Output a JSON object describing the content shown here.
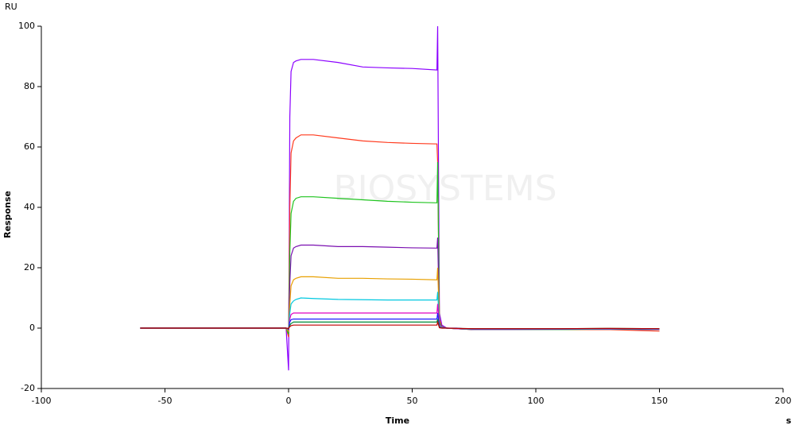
{
  "chart_data": {
    "type": "line",
    "y_unit": "RU",
    "x_unit": "s",
    "x_label": "Time",
    "y_label": "Response",
    "watermark": "BIOSYSTEMS",
    "xlim": [
      -100,
      200
    ],
    "xticks": [
      -100,
      -50,
      0,
      50,
      100,
      150,
      200
    ],
    "ylim": [
      -20,
      100
    ],
    "yticks": [
      -20,
      0,
      20,
      40,
      60,
      80,
      100
    ],
    "grid": false,
    "x": [
      -60,
      -30,
      -1,
      0,
      0.5,
      1,
      2,
      3,
      5,
      10,
      20,
      30,
      40,
      50,
      60,
      60.3,
      61,
      62,
      64,
      68,
      75,
      90,
      110,
      130,
      150
    ],
    "series": [
      {
        "color": "#8b00ff",
        "values": [
          0,
          0,
          0,
          -14,
          70,
          85,
          88,
          88.5,
          89,
          89,
          88,
          86.5,
          86.2,
          86,
          85.5,
          100,
          5,
          1,
          0,
          0,
          -0.5,
          -0.5,
          -0.5,
          -0.3,
          -0.5
        ]
      },
      {
        "color": "#ff3b1f",
        "values": [
          0,
          0,
          0,
          -3,
          40,
          58,
          62,
          63,
          64,
          64,
          63,
          62,
          61.5,
          61.2,
          61,
          55,
          3,
          0.5,
          0,
          -0.2,
          -0.5,
          -0.5,
          -0.5,
          -0.5,
          -1
        ]
      },
      {
        "color": "#1fc41f",
        "values": [
          0,
          0,
          0,
          -2,
          25,
          38,
          42,
          43,
          43.5,
          43.5,
          43,
          42.5,
          42,
          41.7,
          41.5,
          55,
          2,
          0.5,
          0,
          -0.2,
          -0.5,
          -0.5,
          -0.5,
          -0.3,
          -0.5
        ]
      },
      {
        "color": "#7a0fb0",
        "values": [
          0,
          0,
          0,
          -1,
          15,
          24,
          26.5,
          27,
          27.5,
          27.5,
          27,
          27,
          26.8,
          26.6,
          26.5,
          30,
          1.5,
          0.5,
          0,
          -0.2,
          -0.5,
          -0.5,
          -0.4,
          -0.3,
          -0.5
        ]
      },
      {
        "color": "#e8a000",
        "values": [
          0,
          0,
          0,
          -1,
          8,
          14,
          16,
          16.5,
          17,
          17,
          16.5,
          16.5,
          16.3,
          16.2,
          16,
          20,
          1,
          0.3,
          0,
          -0.2,
          -0.4,
          -0.4,
          -0.4,
          -0.3,
          -0.4
        ]
      },
      {
        "color": "#00c8e0",
        "values": [
          0,
          0,
          0,
          -0.5,
          5,
          8,
          9,
          9.5,
          10,
          9.8,
          9.5,
          9.4,
          9.3,
          9.3,
          9.3,
          12,
          0.8,
          0.2,
          0,
          -0.2,
          -0.4,
          -0.4,
          -0.4,
          -0.3,
          -0.4
        ]
      },
      {
        "color": "#e000c0",
        "values": [
          0,
          0,
          0,
          -0.5,
          3,
          4.5,
          5,
          5,
          5,
          5,
          5,
          5,
          5,
          5,
          5,
          8,
          0.5,
          0.1,
          0,
          -0.2,
          -0.3,
          -0.3,
          -0.3,
          -0.2,
          -0.3
        ]
      },
      {
        "color": "#1a1aff",
        "values": [
          0,
          0,
          0,
          -0.3,
          2,
          2.8,
          3,
          3,
          3,
          3,
          3,
          3,
          3,
          3,
          3,
          5,
          0.3,
          0.1,
          0,
          -0.1,
          -0.3,
          -0.3,
          -0.3,
          -0.2,
          -0.3
        ]
      },
      {
        "color": "#008a3a",
        "values": [
          0,
          0,
          0,
          -0.2,
          1,
          1.5,
          2,
          2,
          2,
          2,
          2,
          2,
          2,
          2,
          2,
          3,
          0.2,
          0,
          0,
          -0.1,
          -0.2,
          -0.2,
          -0.2,
          -0.1,
          -0.2
        ]
      },
      {
        "color": "#c00000",
        "values": [
          0,
          0,
          0,
          -0.1,
          0.5,
          0.8,
          1,
          1,
          1,
          1,
          1,
          1,
          1,
          1,
          1,
          2,
          0.1,
          0,
          0,
          -0.1,
          -0.2,
          -0.2,
          -0.2,
          -0.1,
          -0.2
        ]
      }
    ]
  }
}
